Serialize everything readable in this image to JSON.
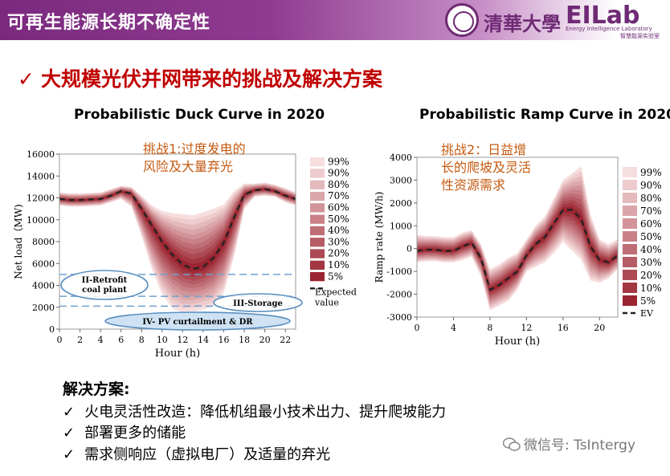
{
  "header": {
    "title": "可再生能源长期不确定性"
  },
  "logo": {
    "university": "清華大學",
    "brand": "EILab",
    "subtitle_en": "Energy Intelligence Laboratory",
    "subtitle_cn": "智慧能源实验室"
  },
  "headline": {
    "check": "✓",
    "text": "大规模光伏并网带来的挑战及解决方案"
  },
  "colors": {
    "band_outer": "#f7dede",
    "band_inner": "#9a2430",
    "expected": "#222222",
    "accent_red": "#c00000",
    "annotation_orange": "#c55a11",
    "ellipse_stroke": "#5b8fc0",
    "ellipse_fill": "#cfe2f3",
    "dash_blue": "#6fa0d0",
    "title_bar": "#7a2a7e"
  },
  "chart_data": [
    {
      "type": "area",
      "title": "Probabilistic Duck Curve in 2020",
      "xlabel": "Hour (h)",
      "ylabel": "Net load（MW)",
      "xlim": [
        0,
        23
      ],
      "ylim": [
        0,
        16000
      ],
      "xticks": [
        "0",
        "2",
        "4",
        "6",
        "8",
        "10",
        "12",
        "14",
        "16",
        "18",
        "20",
        "22"
      ],
      "yticks": [
        "0",
        "2000",
        "4000",
        "6000",
        "8000",
        "10000",
        "12000",
        "14000",
        "16000"
      ],
      "x": [
        0,
        1,
        2,
        3,
        4,
        5,
        6,
        7,
        8,
        9,
        10,
        11,
        12,
        13,
        14,
        15,
        16,
        17,
        18,
        19,
        20,
        21,
        22,
        23
      ],
      "expected": [
        11900,
        11800,
        11800,
        11850,
        11900,
        12200,
        12600,
        12400,
        11000,
        9500,
        8000,
        6800,
        5900,
        5500,
        5700,
        6500,
        7900,
        10200,
        12300,
        12700,
        12800,
        12600,
        12200,
        11900
      ],
      "bands": {
        "levels": [
          "99%",
          "90%",
          "80%",
          "70%",
          "60%",
          "50%",
          "40%",
          "30%",
          "20%",
          "10%",
          "5%"
        ],
        "p99_low": [
          11300,
          11200,
          11200,
          11250,
          11300,
          11600,
          11900,
          11200,
          8500,
          5500,
          3200,
          1900,
          1500,
          1600,
          1800,
          2100,
          3300,
          6600,
          11000,
          12100,
          12200,
          12100,
          11600,
          11300
        ],
        "p99_high": [
          12500,
          12400,
          12400,
          12450,
          12500,
          12800,
          13100,
          13000,
          12200,
          11300,
          10800,
          10600,
          10500,
          10400,
          10700,
          11000,
          11400,
          12600,
          13300,
          13300,
          13400,
          13200,
          12900,
          12500
        ]
      },
      "legend_extra": {
        "label1": "Expected",
        "label2": "value"
      },
      "annotation": {
        "line1": "挑战1:过度发电的",
        "line2": "风险及大量弃光"
      },
      "regions": [
        {
          "label": "II-Retrofit",
          "label2": "coal plant",
          "y_low": 3000,
          "y_high": 5000
        },
        {
          "label": "III-Storage",
          "y_low": 2100,
          "y_high": 3000
        },
        {
          "label": "IV- PV curtailment & DR",
          "y_low": 0,
          "y_high": 2100
        }
      ]
    },
    {
      "type": "area",
      "title": "Probabilistic Ramp Curve in 2020",
      "xlabel": "Hour (h)",
      "ylabel": "Ramp rate (MW/h)",
      "xlim": [
        0,
        22
      ],
      "ylim": [
        -3000,
        4000
      ],
      "xticks": [
        "0",
        "4",
        "8",
        "12",
        "16",
        "20"
      ],
      "yticks": [
        "-3000",
        "-2000",
        "-1000",
        "0",
        "1000",
        "2000",
        "3000",
        "4000"
      ],
      "x": [
        0,
        1,
        2,
        3,
        4,
        5,
        6,
        7,
        8,
        9,
        10,
        11,
        12,
        13,
        14,
        15,
        16,
        17,
        18,
        19,
        20,
        21,
        22
      ],
      "expected": [
        -100,
        -50,
        -50,
        -100,
        -100,
        100,
        250,
        -400,
        -1800,
        -1600,
        -1300,
        -1000,
        -300,
        200,
        500,
        1100,
        1700,
        1700,
        1300,
        100,
        -500,
        -600,
        -300
      ],
      "bands": {
        "levels": [
          "99%",
          "90%",
          "80%",
          "70%",
          "60%",
          "50%",
          "40%",
          "30%",
          "20%",
          "10%",
          "5%"
        ],
        "p99_low": [
          -600,
          -550,
          -550,
          -600,
          -600,
          -500,
          -350,
          -1200,
          -2700,
          -2500,
          -2300,
          -1800,
          -1000,
          -800,
          -600,
          -200,
          300,
          -100,
          -500,
          -1400,
          -1500,
          -1300,
          -900
        ],
        "p99_high": [
          600,
          550,
          550,
          500,
          500,
          700,
          800,
          200,
          -900,
          -700,
          -400,
          -200,
          400,
          1000,
          1400,
          2200,
          3000,
          3300,
          3600,
          1500,
          400,
          200,
          400
        ]
      },
      "legend_extra": {
        "label1": "EV"
      },
      "annotation": {
        "line1": "挑战2：日益增",
        "line2": "长的爬坡及灵活",
        "line3": "性资源需求"
      }
    }
  ],
  "solutions": {
    "title": "解决方案:",
    "check": "✓",
    "items": [
      "火电灵活性改造：降低机组最小技术出力、提升爬坡能力",
      "部署更多的储能",
      "需求侧响应（虚拟电厂）及适量的弃光"
    ]
  },
  "watermark": {
    "icon": "wechat-icon",
    "text": "微信号: TsIntergy"
  }
}
